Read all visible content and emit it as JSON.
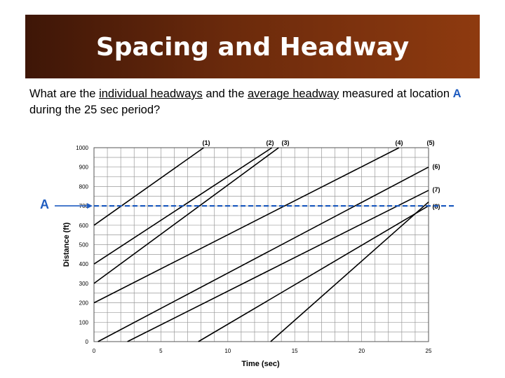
{
  "slide": {
    "title": "Spacing and Headway",
    "question_parts": [
      "What are the ",
      "individual headways",
      " and the ",
      "average headway",
      " measured at location ",
      "A",
      " during the 25 sec period?"
    ],
    "location_label": "A"
  },
  "colors": {
    "banner_dark": "#3e1607",
    "banner_light": "#8e3a0f",
    "location_line": "#1f5cc0",
    "trajectories": "#000000",
    "grid": "#999999"
  },
  "chart_data": {
    "type": "line",
    "xlabel": "Time (sec)",
    "ylabel": "Distance (ft)",
    "xlim": [
      0,
      25
    ],
    "ylim": [
      0,
      1000
    ],
    "xticks": [
      0,
      5,
      10,
      15,
      20,
      25
    ],
    "yticks": [
      0,
      100,
      200,
      300,
      400,
      500,
      600,
      700,
      800,
      900,
      1000
    ],
    "grid": true,
    "reference_line": {
      "y": 700,
      "label": "A"
    },
    "series": [
      {
        "name": "(1)",
        "x": [
          0,
          8.2
        ],
        "y": [
          600,
          1000
        ]
      },
      {
        "name": "(2)",
        "x": [
          0,
          13.3
        ],
        "y": [
          400,
          1000
        ]
      },
      {
        "name": "(3)",
        "x": [
          0,
          13.8
        ],
        "y": [
          300,
          1000
        ]
      },
      {
        "name": "(4)",
        "x": [
          0,
          22.8
        ],
        "y": [
          200,
          1000
        ]
      },
      {
        "name": "(5)",
        "x": [
          0.3,
          25
        ],
        "y": [
          0,
          900
        ]
      },
      {
        "name": "(6)",
        "x": [
          2.5,
          25
        ],
        "y": [
          0,
          780
        ]
      },
      {
        "name": "(7)",
        "x": [
          7.8,
          25
        ],
        "y": [
          0,
          700
        ]
      },
      {
        "name": "(8)",
        "x": [
          13.2,
          25
        ],
        "y": [
          0,
          720
        ]
      }
    ]
  }
}
